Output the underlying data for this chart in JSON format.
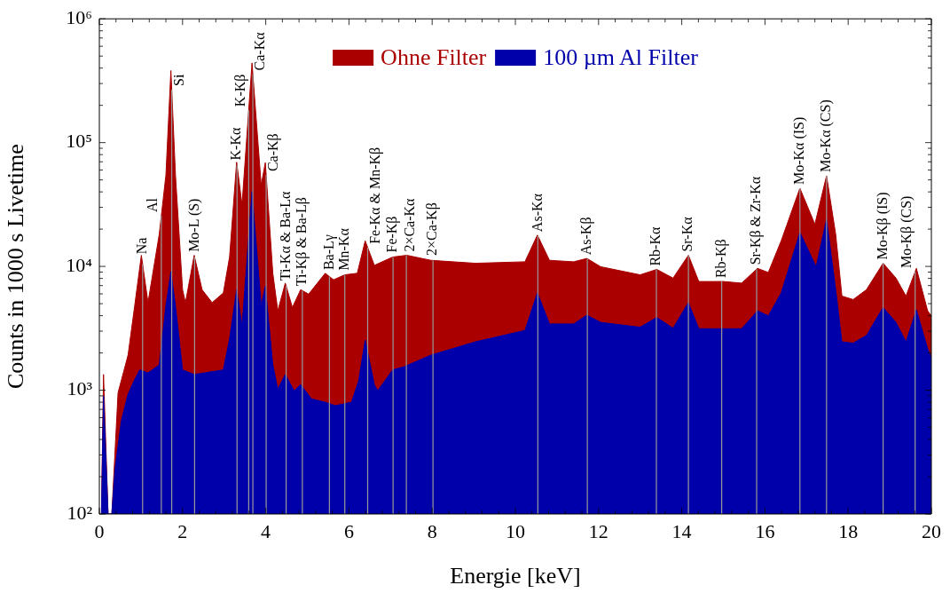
{
  "chart_data": {
    "type": "area",
    "xlabel": "Energie [keV]",
    "ylabel": "Counts in 1000 s Livetime",
    "log": "y",
    "legend": "top",
    "grid": false,
    "xlim": [
      0,
      20
    ],
    "ylim": [
      100,
      1000000
    ],
    "xticks": [
      0,
      {
        "value": 0.4,
        "label": null
      },
      {
        "value": 0.8,
        "label": null
      },
      {
        "value": 1.2,
        "label": null
      },
      {
        "value": 1.6,
        "label": null
      },
      2,
      {
        "value": 2.4,
        "label": null
      },
      {
        "value": 2.8,
        "label": null
      },
      {
        "value": 3.2,
        "label": null
      },
      {
        "value": 3.6,
        "label": null
      },
      4,
      {
        "value": 4.4,
        "label": null
      },
      {
        "value": 4.8,
        "label": null
      },
      {
        "value": 5.2,
        "label": null
      },
      {
        "value": 5.6,
        "label": null
      },
      6,
      {
        "value": 6.4,
        "label": null
      },
      {
        "value": 6.8,
        "label": null
      },
      {
        "value": 7.2,
        "label": null
      },
      {
        "value": 7.6,
        "label": null
      },
      8,
      {
        "value": 8.4,
        "label": null
      },
      {
        "value": 8.8,
        "label": null
      },
      {
        "value": 9.2,
        "label": null
      },
      {
        "value": 9.6,
        "label": null
      },
      10,
      {
        "value": 10.4,
        "label": null
      },
      {
        "value": 10.8,
        "label": null
      },
      {
        "value": 11.2,
        "label": null
      },
      {
        "value": 11.6,
        "label": null
      },
      12,
      {
        "value": 12.4,
        "label": null
      },
      {
        "value": 12.8,
        "label": null
      },
      {
        "value": 13.2,
        "label": null
      },
      {
        "value": 13.6,
        "label": null
      },
      14,
      {
        "value": 14.4,
        "label": null
      },
      {
        "value": 14.8,
        "label": null
      },
      {
        "value": 15.2,
        "label": null
      },
      {
        "value": 15.6,
        "label": null
      },
      16,
      {
        "value": 16.4,
        "label": null
      },
      {
        "value": 16.8,
        "label": null
      },
      {
        "value": 17.2,
        "label": null
      },
      {
        "value": 17.6,
        "label": null
      },
      18,
      {
        "value": 18.4,
        "label": null
      },
      {
        "value": 18.8,
        "label": null
      },
      {
        "value": 19.2,
        "label": null
      },
      {
        "value": 19.6,
        "label": null
      },
      20
    ],
    "yticks": [
      {
        "value": 100,
        "label": "10²"
      },
      {
        "value": 200,
        "label": null
      },
      {
        "value": 300,
        "label": null
      },
      {
        "value": 400,
        "label": null
      },
      {
        "value": 500,
        "label": null
      },
      {
        "value": 600,
        "label": null
      },
      {
        "value": 700,
        "label": null
      },
      {
        "value": 800,
        "label": null
      },
      {
        "value": 900,
        "label": null
      },
      {
        "value": 1000,
        "label": "10³"
      },
      {
        "value": 2000,
        "label": null
      },
      {
        "value": 3000,
        "label": null
      },
      {
        "value": 4000,
        "label": null
      },
      {
        "value": 5000,
        "label": null
      },
      {
        "value": 6000,
        "label": null
      },
      {
        "value": 7000,
        "label": null
      },
      {
        "value": 8000,
        "label": null
      },
      {
        "value": 9000,
        "label": null
      },
      {
        "value": 10000,
        "label": "10⁴"
      },
      {
        "value": 20000,
        "label": null
      },
      {
        "value": 30000,
        "label": null
      },
      {
        "value": 40000,
        "label": null
      },
      {
        "value": 50000,
        "label": null
      },
      {
        "value": 60000,
        "label": null
      },
      {
        "value": 70000,
        "label": null
      },
      {
        "value": 80000,
        "label": null
      },
      {
        "value": 90000,
        "label": null
      },
      {
        "value": 100000,
        "label": "10⁵"
      },
      {
        "value": 200000,
        "label": null
      },
      {
        "value": 300000,
        "label": null
      },
      {
        "value": 400000,
        "label": null
      },
      {
        "value": 500000,
        "label": null
      },
      {
        "value": 600000,
        "label": null
      },
      {
        "value": 700000,
        "label": null
      },
      {
        "value": 800000,
        "label": null
      },
      {
        "value": 900000,
        "label": null
      },
      {
        "value": 1000000,
        "label": "10⁶"
      }
    ],
    "series": [
      {
        "name": "Ohne Filter",
        "color": "#aa0000",
        "x": [
          0.05,
          0.1,
          0.21,
          0.3,
          0.45,
          0.69,
          0.85,
          1.01,
          1.17,
          1.44,
          1.6,
          1.72,
          1.83,
          2.0,
          2.07,
          2.28,
          2.47,
          2.71,
          2.98,
          3.13,
          3.3,
          3.43,
          3.67,
          3.89,
          3.99,
          4.17,
          4.29,
          4.47,
          4.64,
          4.84,
          5.03,
          5.43,
          5.63,
          5.9,
          6.2,
          6.39,
          6.61,
          7.05,
          7.39,
          7.97,
          9.04,
          10.23,
          10.53,
          10.82,
          11.4,
          11.72,
          12.05,
          13.0,
          13.4,
          13.79,
          14.16,
          14.41,
          15.0,
          15.44,
          15.82,
          16.08,
          16.39,
          16.84,
          17.2,
          17.48,
          17.7,
          17.85,
          18.12,
          18.44,
          18.84,
          19.15,
          19.39,
          19.64,
          19.91,
          20.0
        ],
        "values": [
          100,
          1340,
          100,
          100,
          955,
          1920,
          4820,
          12300,
          5100,
          18200,
          54700,
          382000,
          54700,
          6490,
          5100,
          12300,
          6490,
          5100,
          6110,
          11900,
          69500,
          31500,
          440000,
          45400,
          68900,
          8800,
          4380,
          7330,
          4660,
          6490,
          5970,
          8800,
          7800,
          8550,
          8800,
          16100,
          10200,
          11900,
          12300,
          11200,
          10600,
          10900,
          17900,
          11200,
          10900,
          11600,
          9940,
          8550,
          9460,
          8040,
          12300,
          7550,
          7550,
          7330,
          9640,
          8940,
          16100,
          42800,
          21900,
          54000,
          18200,
          5760,
          5400,
          6490,
          10600,
          8040,
          5760,
          9640,
          4380,
          3990
        ]
      },
      {
        "name": "100 µm Al Filter",
        "color": "#0000aa",
        "x": [
          0.05,
          0.1,
          0.21,
          0.3,
          0.375,
          0.53,
          0.69,
          0.85,
          0.97,
          1.17,
          1.44,
          1.6,
          1.72,
          1.83,
          2.0,
          2.28,
          2.98,
          3.13,
          3.3,
          3.43,
          3.67,
          3.89,
          3.99,
          4.17,
          4.29,
          4.47,
          4.68,
          4.84,
          5.1,
          5.43,
          5.67,
          6.06,
          6.23,
          6.39,
          6.61,
          6.69,
          7.05,
          7.33,
          7.97,
          9.04,
          10.23,
          10.53,
          10.82,
          11.4,
          11.72,
          12.05,
          13.0,
          13.4,
          13.79,
          14.16,
          14.41,
          15.44,
          15.82,
          16.08,
          16.39,
          16.84,
          17.23,
          17.48,
          17.7,
          17.85,
          18.12,
          18.44,
          18.84,
          19.15,
          19.39,
          19.64,
          19.91,
          20.0
        ],
        "values": [
          100,
          900,
          100,
          100,
          229,
          570,
          930,
          1220,
          1460,
          1380,
          1600,
          4820,
          9080,
          4820,
          1460,
          1340,
          1460,
          2600,
          6490,
          3320,
          40300,
          4820,
          6910,
          1600,
          1020,
          1340,
          990,
          1110,
          850,
          800,
          750,
          800,
          1180,
          2540,
          1110,
          990,
          1460,
          1550,
          1920,
          2460,
          3040,
          6110,
          3430,
          3430,
          4040,
          3530,
          3230,
          3870,
          3170,
          5100,
          3140,
          3140,
          4380,
          3990,
          6110,
          18800,
          9940,
          24000,
          6490,
          2460,
          2400,
          2770,
          4660,
          3530,
          2460,
          4460,
          2170,
          1810
        ]
      }
    ],
    "ref_lines": [
      {
        "axis": "x",
        "value": 1.04,
        "label": "Na"
      },
      {
        "axis": "x",
        "value": 1.49,
        "label": "Al"
      },
      {
        "axis": "x",
        "value": 1.74,
        "label": "Si"
      },
      {
        "axis": "x",
        "value": 2.29,
        "label": "Mo-L (S)"
      },
      {
        "axis": "x",
        "value": 3.31,
        "label": "K-Kα"
      },
      {
        "axis": "x",
        "value": 3.59,
        "label": "K-Kβ"
      },
      {
        "axis": "x",
        "value": 3.69,
        "label": "Ca-Kα"
      },
      {
        "axis": "x",
        "value": 4.01,
        "label": "Ca-Kβ"
      },
      {
        "axis": "x",
        "value": 4.49,
        "label": "Ti-Kα & Ba-Lα"
      },
      {
        "axis": "x",
        "value": 4.88,
        "label": "Ti-Kβ & Ba-Lβ"
      },
      {
        "axis": "x",
        "value": 5.53,
        "label": "Ba-Lγ"
      },
      {
        "axis": "x",
        "value": 5.9,
        "label": "Mn-Kα"
      },
      {
        "axis": "x",
        "value": 6.45,
        "label": "Fe-Kα & Mn-Kβ"
      },
      {
        "axis": "x",
        "value": 7.06,
        "label": "Fe-Kβ"
      },
      {
        "axis": "x",
        "value": 7.38,
        "label": "2×Ca-Kα"
      },
      {
        "axis": "x",
        "value": 8.02,
        "label": "2×Ca-Kβ"
      },
      {
        "axis": "x",
        "value": 10.54,
        "label": "As-Kα"
      },
      {
        "axis": "x",
        "value": 11.73,
        "label": "As-Kβ"
      },
      {
        "axis": "x",
        "value": 13.39,
        "label": "Rb-Kα"
      },
      {
        "axis": "x",
        "value": 14.16,
        "label": "Sr-Kα"
      },
      {
        "axis": "x",
        "value": 14.96,
        "label": "Rb-Kβ"
      },
      {
        "axis": "x",
        "value": 15.8,
        "label": "Sr-Kβ & Zr-Kα"
      },
      {
        "axis": "x",
        "value": 16.84,
        "label": "Mo-Kα (IS)"
      },
      {
        "axis": "x",
        "value": 17.48,
        "label": "Mo-Kα (CS)"
      },
      {
        "axis": "x",
        "value": 18.84,
        "label": "Mo-Kβ (IS)"
      },
      {
        "axis": "x",
        "value": 19.61,
        "label": "Mo-Kβ (CS)"
      }
    ]
  }
}
